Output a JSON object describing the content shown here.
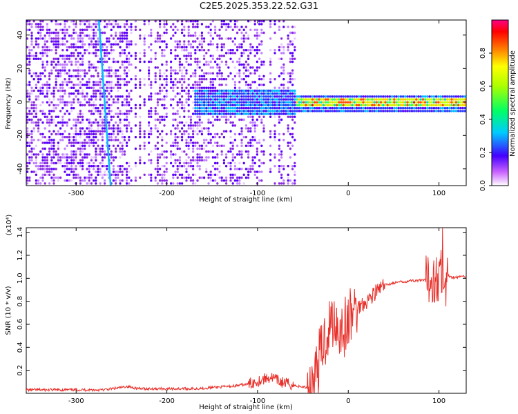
{
  "title": "C2E5.2025.353.22.52.G31",
  "chart_data": [
    {
      "type": "heatmap",
      "xlabel": "Height of straight line (km)",
      "ylabel": "Frequency (Hz)",
      "xlim": [
        -355,
        130
      ],
      "ylim": [
        -50,
        49
      ],
      "x_ticks": [
        -300,
        -200,
        -100,
        0,
        100
      ],
      "y_ticks": [
        -40,
        -20,
        0,
        20,
        40
      ],
      "colorbar": {
        "label": "Normalized spectral amplitude",
        "range": [
          0,
          1
        ],
        "ticks": [
          0.0,
          0.2,
          0.4,
          0.6,
          0.8
        ]
      },
      "features": {
        "tilted_trace": {
          "from": [
            -275,
            49
          ],
          "to": [
            -262,
            -50
          ]
        },
        "steady_line_start_km": -60,
        "steady_line_freq_hz": 0
      }
    },
    {
      "type": "line",
      "xlabel": "Height of straight line (km)",
      "ylabel": "SNR (10 * v/v)",
      "y_multiplier": "(x10⁴)",
      "xlim": [
        -355,
        130
      ],
      "ylim": [
        0,
        1.44
      ],
      "x_ticks": [
        -300,
        -200,
        -100,
        0,
        100
      ],
      "y_ticks": [
        0.2,
        0.4,
        0.6,
        0.8,
        1.0,
        1.2,
        1.4
      ],
      "series": [
        {
          "color": "#e8302a",
          "x": [
            -355,
            -330,
            -300,
            -270,
            -250,
            -245,
            -230,
            -200,
            -170,
            -150,
            -130,
            -110,
            -95,
            -85,
            -75,
            -65,
            -55,
            -45,
            -40,
            -35,
            -30,
            -25,
            -20,
            -15,
            -10,
            -5,
            0,
            5,
            10,
            15,
            20,
            25,
            30,
            35,
            40,
            50,
            60,
            70,
            80,
            90,
            95,
            100,
            103,
            106,
            110,
            115,
            120,
            130
          ],
          "y": [
            0.03,
            0.03,
            0.03,
            0.03,
            0.05,
            0.06,
            0.04,
            0.04,
            0.04,
            0.05,
            0.06,
            0.08,
            0.12,
            0.14,
            0.1,
            0.08,
            0.06,
            0.05,
            0.08,
            0.2,
            0.35,
            0.5,
            0.6,
            0.65,
            0.58,
            0.55,
            0.62,
            0.7,
            0.74,
            0.78,
            0.8,
            0.84,
            0.88,
            0.91,
            0.94,
            0.96,
            0.97,
            0.98,
            0.98,
            0.99,
            1.0,
            1.0,
            1.05,
            0.92,
            1.02,
            1.01,
            1.01,
            1.02
          ]
        }
      ]
    }
  ]
}
